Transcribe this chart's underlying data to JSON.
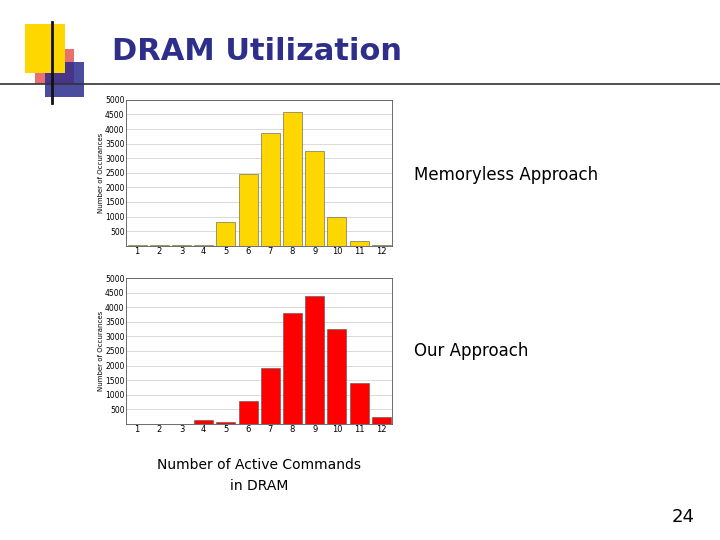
{
  "title": "DRAM Utilization",
  "title_color": "#2E2E8B",
  "title_fontsize": 22,
  "label_memoryless": "Memoryless Approach",
  "label_our": "Our Approach",
  "xlabel_line1": "Number of Active Commands",
  "xlabel_line2": "in DRAM",
  "ylabel": "Number of Occurances",
  "x_ticks": [
    1,
    2,
    3,
    4,
    5,
    6,
    7,
    8,
    9,
    10,
    11,
    12
  ],
  "memoryless_values": [
    10,
    10,
    10,
    30,
    800,
    2450,
    3850,
    4600,
    3250,
    1000,
    150,
    40
  ],
  "our_values": [
    10,
    10,
    10,
    150,
    50,
    800,
    1900,
    3800,
    4400,
    3250,
    1400,
    250
  ],
  "bar_color_memoryless": "#FFD700",
  "bar_color_our": "#FF0000",
  "bar_edgecolor": "#555555",
  "ylim": [
    0,
    5000
  ],
  "yticks": [
    0,
    500,
    1000,
    1500,
    2000,
    2500,
    3000,
    3500,
    4000,
    4500,
    5000
  ],
  "background_slide": "#FFFFFF",
  "page_number": "24",
  "accent_yellow": "#FFD700",
  "accent_blue": "#2B2B8F",
  "accent_red": "#CC2222",
  "accent_darkblue": "#1A1A6E"
}
